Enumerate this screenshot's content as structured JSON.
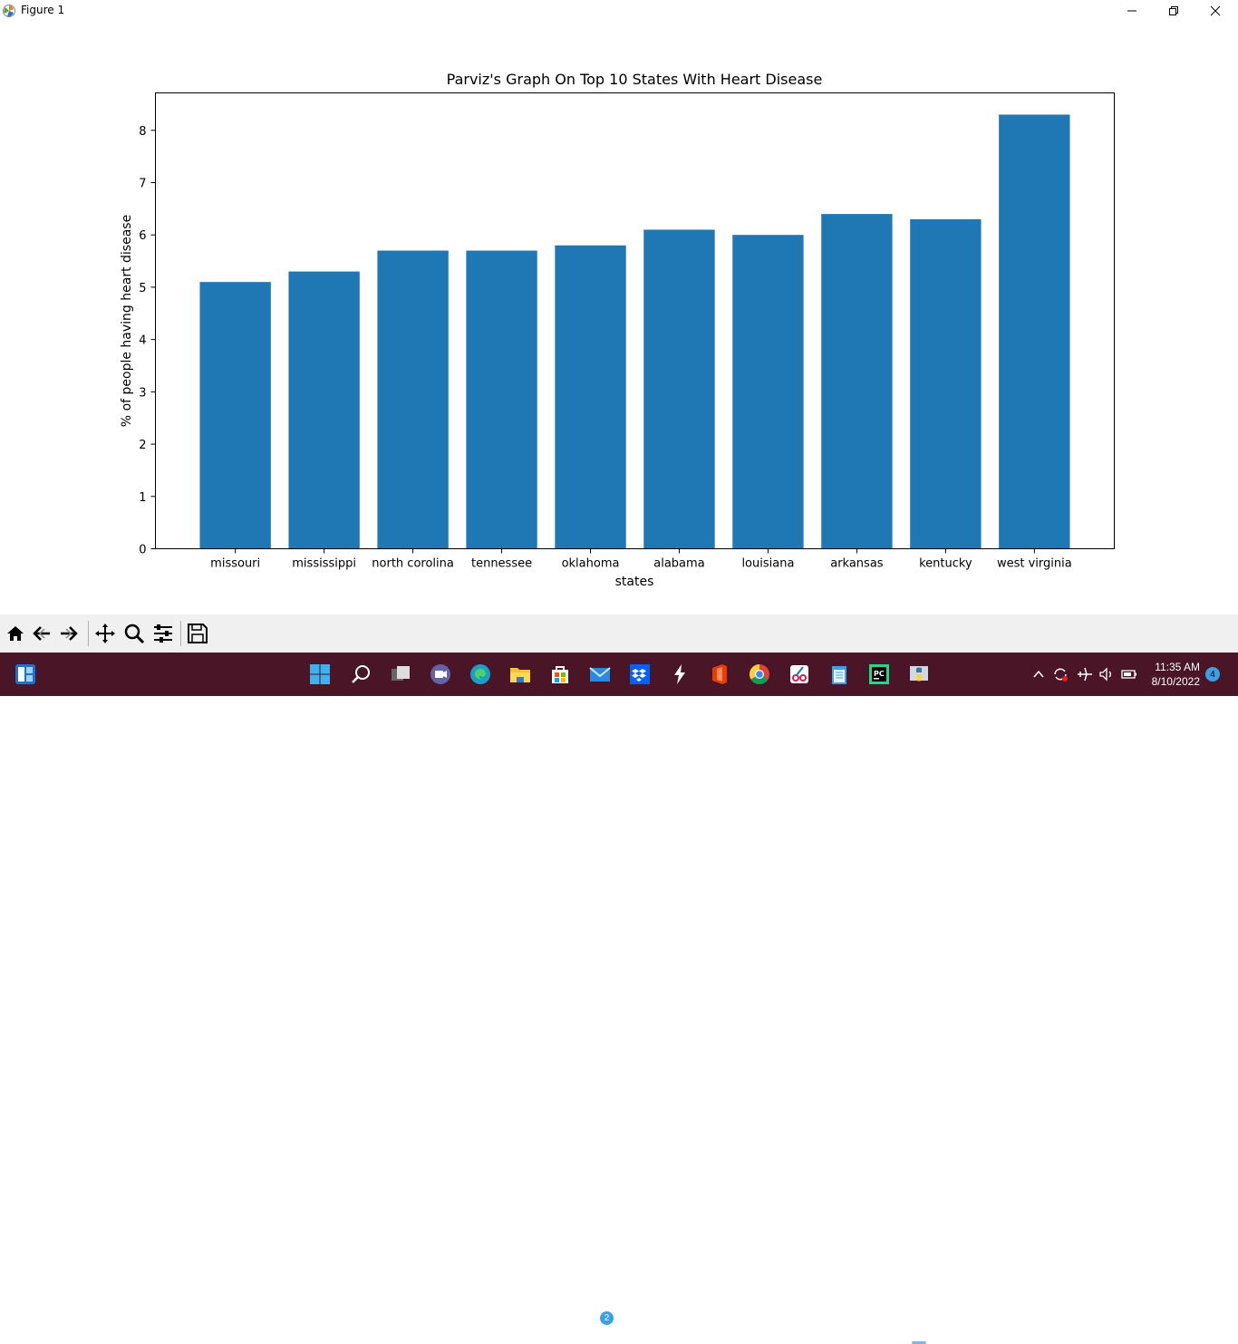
{
  "window": {
    "title": "Figure 1"
  },
  "chart_data": {
    "type": "bar",
    "title": "Parviz's Graph On Top 10 States With Heart Disease",
    "xlabel": "states",
    "ylabel": "% of people having heart disease",
    "categories": [
      "missouri",
      "mississippi",
      "north corolina",
      "tennessee",
      "oklahoma",
      "alabama",
      "louisiana",
      "arkansas",
      "kentucky",
      "west virginia"
    ],
    "values": [
      5.1,
      5.3,
      5.7,
      5.7,
      5.8,
      6.1,
      6.0,
      6.4,
      6.3,
      8.3
    ],
    "yticks": [
      0,
      1,
      2,
      3,
      4,
      5,
      6,
      7,
      8
    ],
    "ylim": [
      0,
      8.715
    ],
    "bar_color": "#1f77b4",
    "grid": false,
    "legend": "none"
  },
  "toolbar": {
    "buttons": [
      "home-icon",
      "back-icon",
      "forward-icon",
      "pan-icon",
      "zoom-icon",
      "configure-icon",
      "save-icon"
    ]
  },
  "taskbar": {
    "mail_badge": "2",
    "clock_time": "11:35 AM",
    "clock_date": "8/10/2022",
    "notifications": "4",
    "accent_color": "#4a1526"
  }
}
